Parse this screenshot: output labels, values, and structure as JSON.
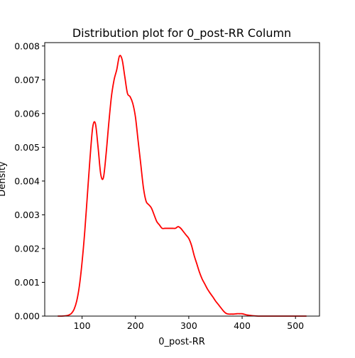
{
  "chart_data": {
    "type": "line",
    "title": "Distribution plot for 0_post-RR Column",
    "xlabel": "0_post-RR",
    "ylabel": "Density",
    "xlim": [
      30,
      545
    ],
    "ylim": [
      0,
      0.0081
    ],
    "x_ticks": [
      100,
      200,
      300,
      400,
      500
    ],
    "x_tick_labels": [
      "100",
      "200",
      "300",
      "400",
      "500"
    ],
    "y_ticks": [
      0,
      0.001,
      0.002,
      0.003,
      0.004,
      0.005,
      0.006,
      0.007,
      0.008
    ],
    "y_tick_labels": [
      "0.000",
      "0.001",
      "0.002",
      "0.003",
      "0.004",
      "0.005",
      "0.006",
      "0.007",
      "0.008"
    ],
    "grid": false,
    "legend": "none",
    "series": [
      {
        "color": "#ff0000",
        "x": [
          55,
          62,
          70,
          75,
          80,
          85,
          90,
          95,
          100,
          105,
          110,
          115,
          120,
          125,
          130,
          135,
          140,
          145,
          150,
          155,
          160,
          165,
          170,
          175,
          180,
          185,
          190,
          195,
          200,
          205,
          210,
          215,
          220,
          225,
          230,
          235,
          240,
          245,
          250,
          255,
          260,
          265,
          270,
          275,
          280,
          285,
          290,
          295,
          300,
          305,
          310,
          315,
          320,
          325,
          330,
          335,
          340,
          345,
          350,
          355,
          360,
          365,
          370,
          375,
          380,
          385,
          390,
          395,
          400,
          405,
          410,
          420,
          430,
          440,
          450,
          460,
          470,
          480,
          490,
          500,
          510,
          520
        ],
        "y": [
          0.0,
          0.0,
          1e-05,
          3e-05,
          8e-05,
          0.0002,
          0.00045,
          0.0009,
          0.0016,
          0.0025,
          0.0036,
          0.0047,
          0.0056,
          0.0057,
          0.005,
          0.0042,
          0.0041,
          0.0048,
          0.0057,
          0.0065,
          0.007,
          0.0073,
          0.0077,
          0.0076,
          0.0071,
          0.0066,
          0.0065,
          0.0063,
          0.0059,
          0.0052,
          0.0045,
          0.0038,
          0.0034,
          0.0033,
          0.0032,
          0.003,
          0.0028,
          0.0027,
          0.0026,
          0.0026,
          0.0026,
          0.0026,
          0.0026,
          0.0026,
          0.00265,
          0.0026,
          0.0025,
          0.0024,
          0.0023,
          0.0021,
          0.0018,
          0.00155,
          0.0013,
          0.0011,
          0.00095,
          0.0008,
          0.00068,
          0.00057,
          0.00045,
          0.00035,
          0.00025,
          0.00015,
          8e-05,
          6e-05,
          6e-05,
          6e-05,
          7e-05,
          7e-05,
          7e-05,
          5e-05,
          3e-05,
          1e-05,
          0.0,
          0.0,
          0.0,
          0.0,
          0.0,
          0.0,
          0.0,
          0.0,
          0.0,
          0.0
        ]
      }
    ]
  }
}
